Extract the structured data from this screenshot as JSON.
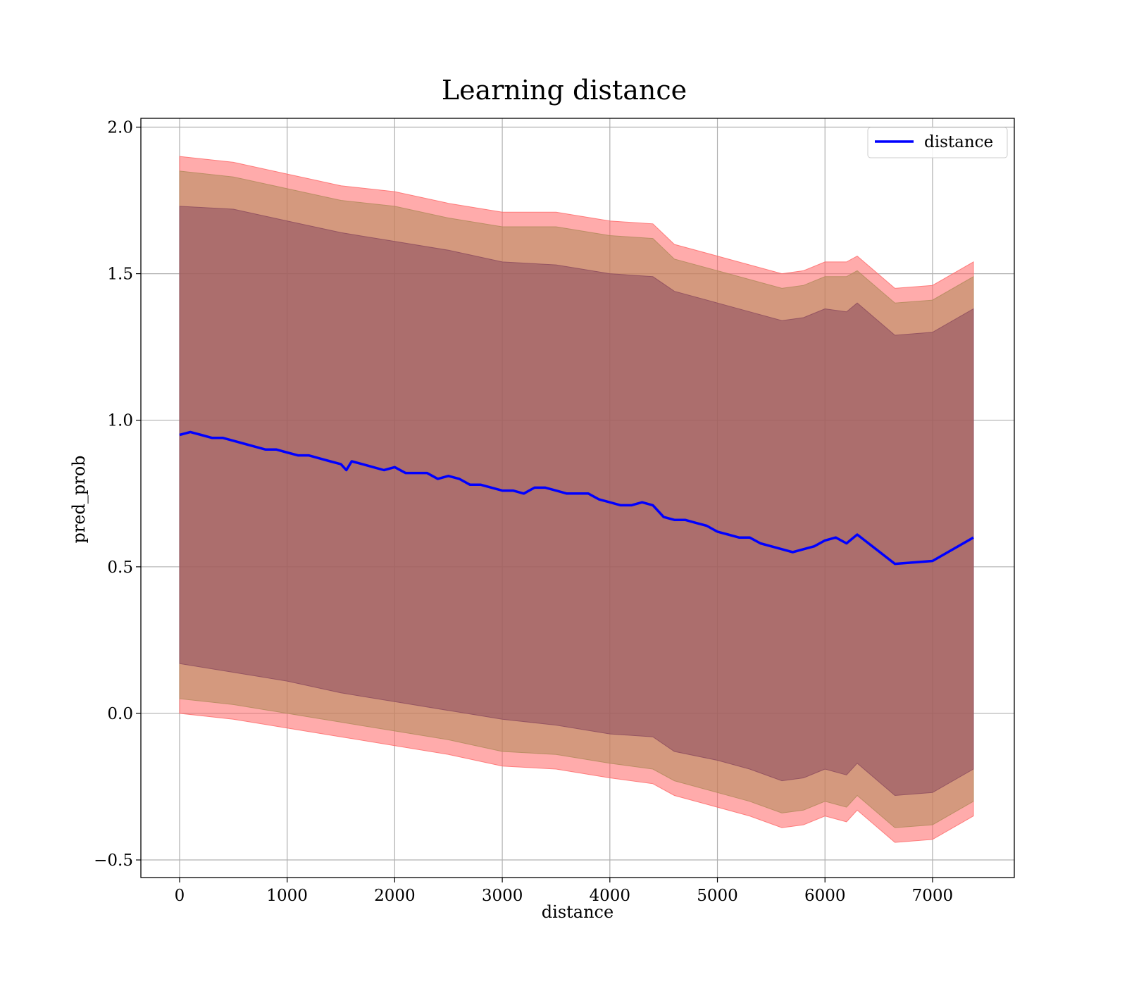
{
  "chart_data": {
    "type": "line",
    "title": "Learning distance",
    "xlabel": "distance",
    "ylabel": "pred_prob",
    "xlim": [
      -360,
      7760
    ],
    "ylim": [
      -0.56,
      2.03
    ],
    "xticks": [
      0,
      1000,
      2000,
      3000,
      4000,
      5000,
      6000,
      7000
    ],
    "yticks": [
      -0.5,
      0.0,
      0.5,
      1.0,
      1.5,
      2.0
    ],
    "xtick_labels": [
      "0",
      "1000",
      "2000",
      "3000",
      "4000",
      "5000",
      "6000",
      "7000"
    ],
    "ytick_labels": [
      "−0.5",
      "0.0",
      "0.5",
      "1.0",
      "1.5",
      "2.0"
    ],
    "grid": true,
    "legend": {
      "placement": "top-right",
      "entries": [
        "distance"
      ]
    },
    "series": [
      {
        "name": "distance",
        "color": "#0000ff",
        "x": [
          0,
          100,
          200,
          300,
          400,
          500,
          600,
          700,
          800,
          900,
          1000,
          1100,
          1200,
          1300,
          1400,
          1500,
          1550,
          1600,
          1700,
          1800,
          1900,
          2000,
          2100,
          2200,
          2300,
          2400,
          2500,
          2600,
          2700,
          2800,
          2900,
          3000,
          3100,
          3200,
          3300,
          3400,
          3500,
          3600,
          3700,
          3800,
          3900,
          4000,
          4100,
          4200,
          4300,
          4400,
          4500,
          4600,
          4700,
          4800,
          4900,
          5000,
          5100,
          5200,
          5300,
          5400,
          5500,
          5600,
          5700,
          5800,
          5900,
          6000,
          6100,
          6200,
          6300,
          6650,
          7000,
          7380
        ],
        "y": [
          0.95,
          0.96,
          0.95,
          0.94,
          0.94,
          0.93,
          0.92,
          0.91,
          0.9,
          0.9,
          0.89,
          0.88,
          0.88,
          0.87,
          0.86,
          0.85,
          0.83,
          0.86,
          0.85,
          0.84,
          0.83,
          0.84,
          0.82,
          0.82,
          0.82,
          0.8,
          0.81,
          0.8,
          0.78,
          0.78,
          0.77,
          0.76,
          0.76,
          0.75,
          0.77,
          0.77,
          0.76,
          0.75,
          0.75,
          0.75,
          0.73,
          0.72,
          0.71,
          0.71,
          0.72,
          0.71,
          0.67,
          0.66,
          0.66,
          0.65,
          0.64,
          0.62,
          0.61,
          0.6,
          0.6,
          0.58,
          0.57,
          0.56,
          0.55,
          0.56,
          0.57,
          0.59,
          0.6,
          0.58,
          0.61,
          0.51,
          0.52,
          0.6
        ]
      }
    ],
    "bands": [
      {
        "color": "#ff6666",
        "x": [
          0,
          500,
          1000,
          1500,
          2000,
          2500,
          3000,
          3500,
          4000,
          4400,
          4600,
          5000,
          5300,
          5600,
          5800,
          6000,
          6200,
          6300,
          6650,
          7000,
          7380
        ],
        "upper": [
          1.9,
          1.88,
          1.84,
          1.8,
          1.78,
          1.74,
          1.71,
          1.71,
          1.68,
          1.67,
          1.6,
          1.56,
          1.53,
          1.5,
          1.51,
          1.54,
          1.54,
          1.56,
          1.45,
          1.46,
          1.54
        ],
        "lower": [
          0.0,
          -0.02,
          -0.05,
          -0.08,
          -0.11,
          -0.14,
          -0.18,
          -0.19,
          -0.22,
          -0.24,
          -0.28,
          -0.32,
          -0.35,
          -0.39,
          -0.38,
          -0.35,
          -0.37,
          -0.33,
          -0.44,
          -0.43,
          -0.35
        ]
      },
      {
        "color": "#b08a5a",
        "x": [
          0,
          500,
          1000,
          1500,
          2000,
          2500,
          3000,
          3500,
          4000,
          4400,
          4600,
          5000,
          5300,
          5600,
          5800,
          6000,
          6200,
          6300,
          6650,
          7000,
          7380
        ],
        "upper": [
          1.85,
          1.83,
          1.79,
          1.75,
          1.73,
          1.69,
          1.66,
          1.66,
          1.63,
          1.62,
          1.55,
          1.51,
          1.48,
          1.45,
          1.46,
          1.49,
          1.49,
          1.51,
          1.4,
          1.41,
          1.49
        ],
        "lower": [
          0.05,
          0.03,
          0.0,
          -0.03,
          -0.06,
          -0.09,
          -0.13,
          -0.14,
          -0.17,
          -0.19,
          -0.23,
          -0.27,
          -0.3,
          -0.34,
          -0.33,
          -0.3,
          -0.32,
          -0.28,
          -0.39,
          -0.38,
          -0.3
        ]
      },
      {
        "color": "#8b4a5e",
        "x": [
          0,
          500,
          1000,
          1500,
          2000,
          2500,
          3000,
          3500,
          4000,
          4400,
          4600,
          5000,
          5300,
          5600,
          5800,
          6000,
          6200,
          6300,
          6650,
          7000,
          7380
        ],
        "upper": [
          1.73,
          1.72,
          1.68,
          1.64,
          1.61,
          1.58,
          1.54,
          1.53,
          1.5,
          1.49,
          1.44,
          1.4,
          1.37,
          1.34,
          1.35,
          1.38,
          1.37,
          1.4,
          1.29,
          1.3,
          1.38
        ],
        "lower": [
          0.17,
          0.14,
          0.11,
          0.07,
          0.04,
          0.01,
          -0.02,
          -0.04,
          -0.07,
          -0.08,
          -0.13,
          -0.16,
          -0.19,
          -0.23,
          -0.22,
          -0.19,
          -0.21,
          -0.17,
          -0.28,
          -0.27,
          -0.19
        ]
      }
    ]
  }
}
